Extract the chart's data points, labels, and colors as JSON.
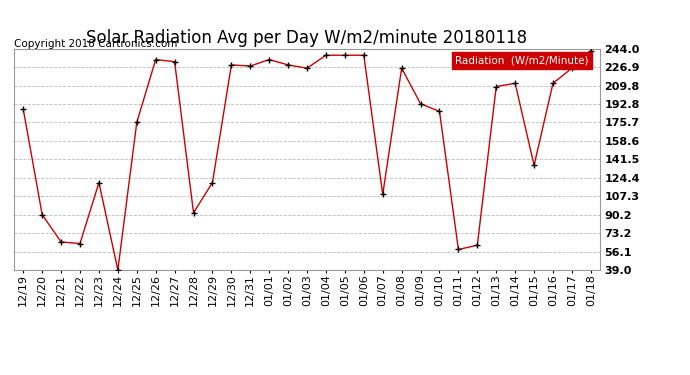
{
  "title": "Solar Radiation Avg per Day W/m2/minute 20180118",
  "copyright": "Copyright 2018 Cartronics.com",
  "legend_label": "Radiation  (W/m2/Minute)",
  "ylabel_values": [
    39.0,
    56.1,
    73.2,
    90.2,
    107.3,
    124.4,
    141.5,
    158.6,
    175.7,
    192.8,
    209.8,
    226.9,
    244.0
  ],
  "dates": [
    "12/19",
    "12/20",
    "12/21",
    "12/22",
    "12/23",
    "12/24",
    "12/25",
    "12/26",
    "12/27",
    "12/28",
    "12/29",
    "12/30",
    "12/31",
    "01/01",
    "01/02",
    "01/03",
    "01/04",
    "01/05",
    "01/06",
    "01/07",
    "01/08",
    "01/09",
    "01/10",
    "01/11",
    "01/12",
    "01/13",
    "01/14",
    "01/15",
    "01/16",
    "01/17",
    "01/18"
  ],
  "values": [
    188.0,
    90.2,
    65.0,
    63.5,
    120.0,
    39.0,
    175.7,
    234.0,
    232.0,
    92.0,
    120.0,
    229.0,
    228.0,
    234.0,
    229.0,
    226.0,
    238.0,
    238.0,
    238.0,
    109.0,
    226.0,
    193.0,
    186.0,
    58.0,
    62.0,
    209.0,
    212.0,
    136.0,
    212.0,
    226.0,
    242.0
  ],
  "line_color": "#cc0000",
  "marker_color": "#000000",
  "bg_color": "#ffffff",
  "grid_color": "#bbbbbb",
  "legend_bg": "#cc0000",
  "legend_text_color": "#ffffff",
  "title_fontsize": 12,
  "copyright_fontsize": 7.5,
  "tick_fontsize": 8,
  "ylim": [
    39.0,
    244.0
  ]
}
